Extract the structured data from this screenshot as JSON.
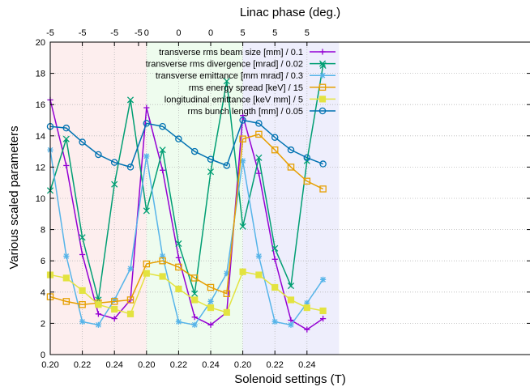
{
  "chart_data": {
    "type": "line",
    "xlabel": "Solenoid settings (T)",
    "ylabel": "Various scaled parameters",
    "x2label": "Linac phase (deg.)",
    "ylim": [
      0,
      20
    ],
    "yticks": [
      0,
      2,
      4,
      6,
      8,
      10,
      12,
      14,
      16,
      18,
      20
    ],
    "x": [
      0.2,
      0.21,
      0.22,
      0.23,
      0.24,
      0.25,
      0.2,
      0.21,
      0.22,
      0.23,
      0.24,
      0.25,
      0.2,
      0.21,
      0.22,
      0.23,
      0.24,
      0.25
    ],
    "xtick_labels": [
      "0.20",
      "0.22",
      "0.24",
      "0.20",
      "0.22",
      "0.24",
      "0.20",
      "0.22",
      "0.24"
    ],
    "xtick_positions": [
      0,
      2,
      4,
      6,
      8,
      10,
      12,
      14,
      16
    ],
    "x2tick_labels": [
      "-5",
      "-5",
      "-5",
      "-5",
      "0",
      "0",
      "0",
      "5",
      "5",
      "5"
    ],
    "x2tick_positions": [
      0,
      2,
      4,
      5.5,
      6,
      8,
      10,
      12,
      14,
      16
    ],
    "regions": [
      {
        "from": 0,
        "to": 6,
        "color": "#fdeeee"
      },
      {
        "from": 6,
        "to": 12,
        "color": "#eefcee"
      },
      {
        "from": 12,
        "to": 18,
        "color": "#eeeefc"
      }
    ],
    "grid": true,
    "legend_position": "top-right",
    "series": [
      {
        "name": "transverse rms beam size [mm] / 0.1",
        "color": "#9400d3",
        "marker": "plus",
        "values": [
          16.3,
          12.1,
          6.4,
          2.6,
          2.3,
          3.5,
          15.8,
          11.8,
          6.2,
          2.4,
          1.9,
          2.7,
          15.3,
          11.6,
          6.1,
          2.2,
          1.6,
          2.3
        ]
      },
      {
        "name": "transverse rms divergence [mrad] / 0.02",
        "color": "#009e73",
        "marker": "cross",
        "values": [
          10.5,
          13.8,
          7.5,
          3.5,
          10.9,
          16.3,
          9.2,
          13.1,
          7.1,
          3.9,
          11.7,
          17.5,
          8.2,
          12.6,
          6.8,
          4.4,
          12.4,
          18.5
        ]
      },
      {
        "name": "transverse emittance [mm mrad] / 0.3",
        "color": "#56b4e9",
        "marker": "star",
        "values": [
          13.1,
          6.3,
          2.1,
          1.9,
          3.5,
          5.5,
          12.7,
          6.3,
          2.1,
          1.9,
          3.4,
          5.2,
          12.4,
          6.3,
          2.1,
          1.9,
          3.3,
          4.8
        ]
      },
      {
        "name": "rms energy spread [keV] / 15",
        "color": "#e69f00",
        "marker": "square",
        "values": [
          3.7,
          3.4,
          3.2,
          3.3,
          3.4,
          3.5,
          5.8,
          6.0,
          5.6,
          4.9,
          4.3,
          3.9,
          13.8,
          14.1,
          13.1,
          12.0,
          11.1,
          10.6
        ]
      },
      {
        "name": "longitudinal emittance [keV mm] / 5",
        "color": "#e3e340",
        "marker": "filled-square",
        "values": [
          5.1,
          4.9,
          4.1,
          3.2,
          2.9,
          2.6,
          5.2,
          5.0,
          4.2,
          3.5,
          3.0,
          2.7,
          5.3,
          5.1,
          4.3,
          3.5,
          3.0,
          2.8
        ]
      },
      {
        "name": "rms bunch length [mm] / 0.05",
        "color": "#0072b2",
        "marker": "circle",
        "values": [
          14.6,
          14.5,
          13.6,
          12.8,
          12.3,
          12.0,
          14.8,
          14.6,
          13.8,
          13.0,
          12.5,
          12.1,
          15.0,
          14.8,
          13.9,
          13.1,
          12.6,
          12.2
        ]
      }
    ]
  }
}
